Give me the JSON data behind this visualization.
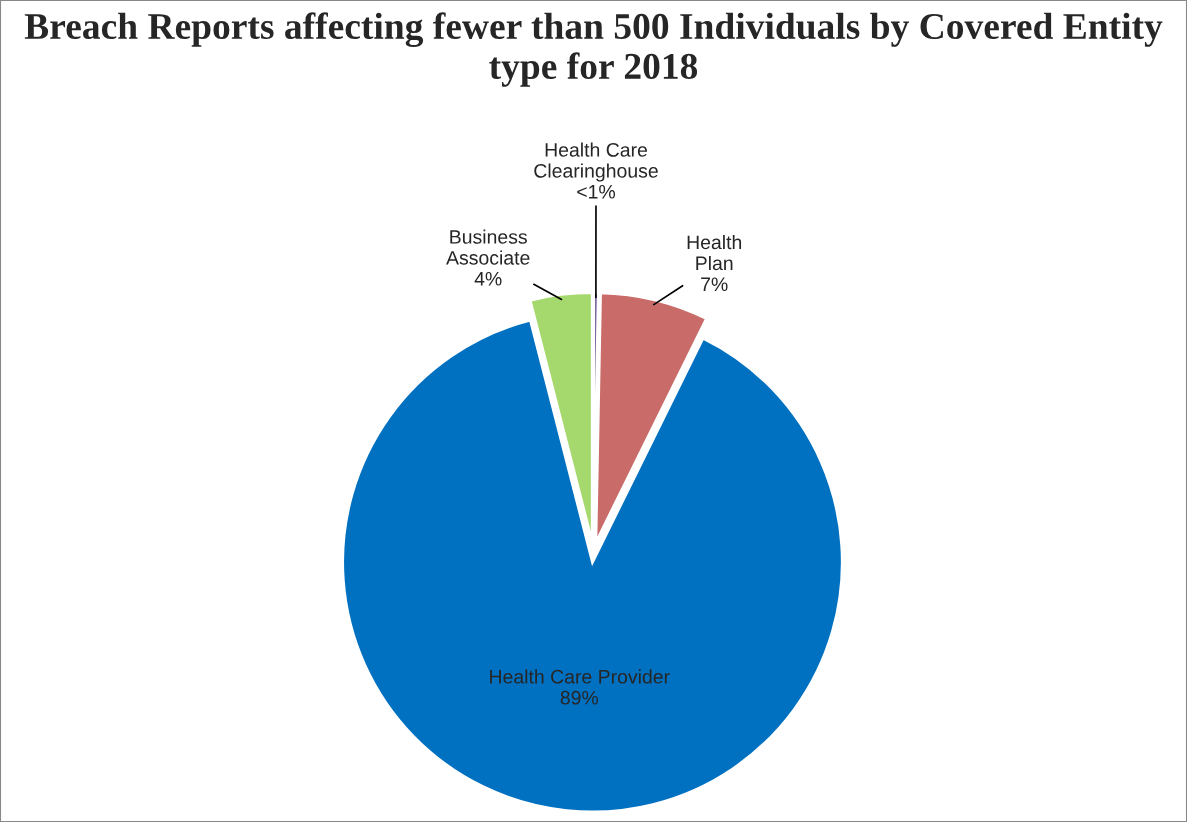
{
  "chart_data": {
    "type": "pie",
    "title": "Breach Reports affecting fewer than 500 Individuals by Covered Entity type for 2018",
    "categories": [
      "Health Care Clearinghouse",
      "Health Plan",
      "Health Care Provider",
      "Business Associate"
    ],
    "values": [
      0.3,
      7,
      88.7,
      4
    ],
    "value_labels": [
      "<1%",
      "7%",
      "89%",
      "4%"
    ],
    "colors": [
      "#7e6aa0",
      "#c96b68",
      "#0070c0",
      "#a5d86d"
    ]
  }
}
